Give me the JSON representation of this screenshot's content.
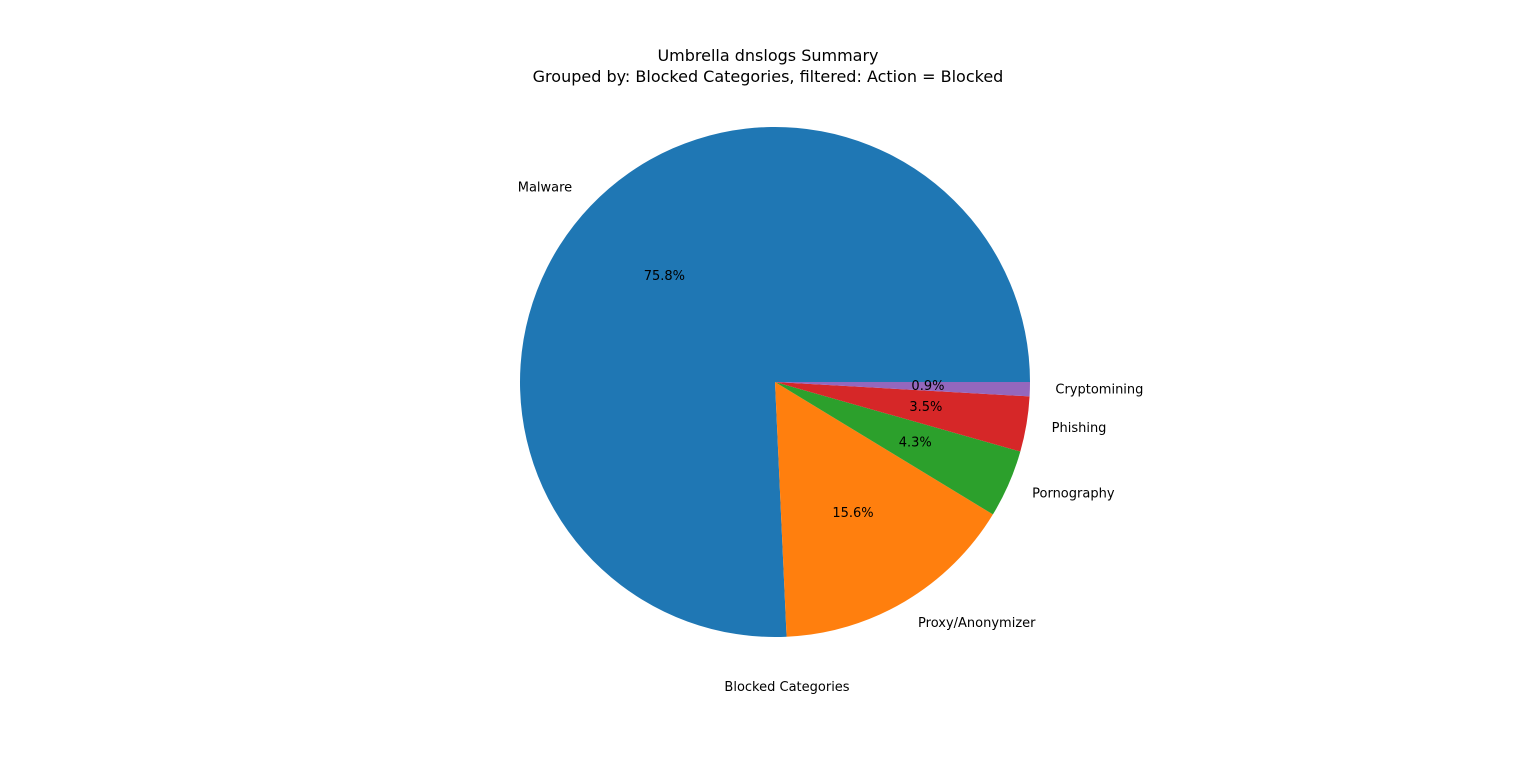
{
  "chart_data": {
    "type": "pie",
    "title": "Umbrella dnslogs Summary",
    "subtitle": "Grouped by: Blocked Categories, filtered: Action = Blocked",
    "xlabel": "Blocked Categories",
    "ylabel": "",
    "categories": [
      "Malware",
      "Proxy/Anonymizer",
      "Pornography",
      "Phishing",
      "Cryptomining"
    ],
    "values": [
      75.8,
      15.6,
      4.3,
      3.5,
      0.9
    ],
    "value_labels": [
      "75.8%",
      "15.6%",
      "4.3%",
      "3.5%",
      "0.9%"
    ],
    "colors": [
      "#1f77b4",
      "#ff7f0e",
      "#2ca02c",
      "#d62728",
      "#9467bd"
    ],
    "start_angle_deg": 0,
    "direction": "counterclockwise",
    "legend": "none"
  }
}
